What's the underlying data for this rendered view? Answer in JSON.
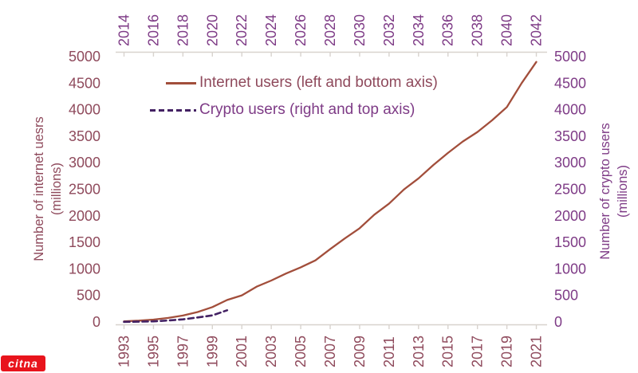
{
  "logo": {
    "text": "citna",
    "background_color": "#e8141c",
    "text_color": "#ffffff"
  },
  "legend": [
    {
      "label": "Internet users (left and bottom axis)",
      "style": "solid",
      "line_color": "#a24e3b",
      "text_color": "#8f4a5c"
    },
    {
      "label": "Crypto users (right and top axis)",
      "style": "dashed",
      "line_color": "#432163",
      "text_color": "#7e3b86"
    }
  ],
  "axes": {
    "left": {
      "title_line1": "Number of internet uesrs",
      "title_line2": "(millions)",
      "color": "#8f4a5c",
      "ticks": [
        5000,
        4500,
        4000,
        3500,
        3000,
        2500,
        2000,
        1500,
        1000,
        500,
        0
      ]
    },
    "right": {
      "title_line1": "Number of crypto users",
      "title_line2": "(millions)",
      "color": "#7e3b86",
      "ticks": [
        5000,
        4500,
        4000,
        3500,
        3000,
        2500,
        2000,
        1500,
        1000,
        500,
        0
      ]
    },
    "bottom": {
      "color": "#8f4a5c",
      "ticks": [
        1993,
        1995,
        1997,
        1999,
        2001,
        2003,
        2005,
        2007,
        2009,
        2011,
        2013,
        2015,
        2017,
        2019,
        2021
      ]
    },
    "top": {
      "color": "#7e3b86",
      "ticks": [
        2014,
        2016,
        2018,
        2020,
        2022,
        2024,
        2026,
        2028,
        2030,
        2032,
        2034,
        2036,
        2038,
        2040,
        2042
      ]
    },
    "axis_line_color": "#d8d3ce"
  },
  "chart_data": {
    "type": "line",
    "title": "",
    "ylabel_left": "Number of internet uesrs (millions)",
    "ylabel_right": "Number of crypto users (millions)",
    "y_range": [
      0,
      5000
    ],
    "x_bottom_range": [
      1993,
      2021
    ],
    "x_top_range": [
      2014,
      2042
    ],
    "grid": false,
    "legend_position": "top-left-inside",
    "series": [
      {
        "name": "Internet users (left and bottom axis)",
        "axes_used": "left and bottom",
        "style": "solid",
        "color": "#a24e3b",
        "x": [
          1993,
          1994,
          1995,
          1996,
          1997,
          1998,
          1999,
          2000,
          2001,
          2002,
          2003,
          2004,
          2005,
          2006,
          2007,
          2008,
          2009,
          2010,
          2011,
          2012,
          2013,
          2014,
          2015,
          2016,
          2017,
          2018,
          2019,
          2020,
          2021
        ],
        "values": [
          14,
          25,
          45,
          77,
          121,
          188,
          281,
          415,
          502,
          665,
          781,
          913,
          1030,
          1160,
          1373,
          1575,
          1766,
          2023,
          2231,
          2494,
          2705,
          2956,
          3185,
          3400,
          3580,
          3800,
          4050,
          4500,
          4900
        ]
      },
      {
        "name": "Crypto users (right and top axis)",
        "axes_used": "right and top",
        "style": "dashed",
        "color": "#432163",
        "x": [
          2014,
          2015,
          2016,
          2017,
          2018,
          2019,
          2020,
          2021
        ],
        "values": [
          3,
          6,
          12,
          28,
          50,
          85,
          125,
          220
        ]
      }
    ]
  }
}
